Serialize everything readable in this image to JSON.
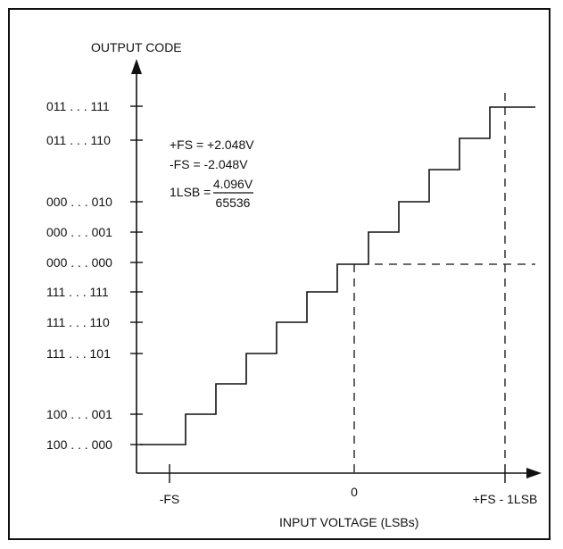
{
  "y_axis_label": "OUTPUT CODE",
  "x_axis_label": "INPUT VOLTAGE (LSBs)",
  "output_codes": [
    "011 . . . 111",
    "011 . . . 110",
    "000 . . . 010",
    "000 . . . 001",
    "000 . . . 000",
    "111 . . . 111",
    "111 . . . 110",
    "111 . . . 101",
    "100 . . . 001",
    "100 . . . 000"
  ],
  "x_ticks": [
    "-FS",
    "0",
    "+FS - 1LSB"
  ],
  "notes": {
    "pos_fs": "+FS = +2.048V",
    "neg_fs": "-FS = -2.048V",
    "lsb_prefix": "1LSB =",
    "lsb_numerator": "4.096V",
    "lsb_denominator": "65536"
  }
}
